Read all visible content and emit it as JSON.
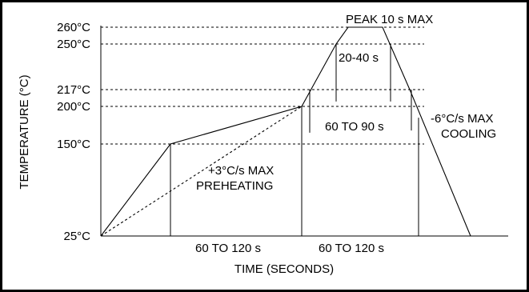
{
  "chart_data": {
    "type": "line",
    "title": "",
    "xlabel": "TIME (SECONDS)",
    "ylabel": "TEMPERATURE (°C)",
    "y_ticks": [
      {
        "value": 25,
        "label": "25°C"
      },
      {
        "value": 150,
        "label": "150°C"
      },
      {
        "value": 200,
        "label": "200°C"
      },
      {
        "value": 217,
        "label": "217°C"
      },
      {
        "value": 250,
        "label": "250°C"
      },
      {
        "value": 260,
        "label": "260°C"
      }
    ],
    "ylim": [
      25,
      260
    ],
    "series": [
      {
        "style": "solid",
        "x": [
          0,
          60,
          180,
          220,
          240,
          255,
          290,
          340
        ],
        "y": [
          25,
          150,
          200,
          250,
          260,
          260,
          217,
          25
        ]
      },
      {
        "style": "dashed",
        "x": [
          0,
          180
        ],
        "y": [
          25,
          200
        ]
      }
    ],
    "annotations": {
      "peak": "PEAK 10 s MAX",
      "time_above_250": "20-40 s",
      "time_above_217": "60 TO 90 s",
      "cooling_rate": "-6°C/s MAX",
      "cooling_label": "COOLING",
      "preheat_rate": "+3°C/s MAX",
      "preheat_label": "PREHEATING",
      "span_preheat": "60 TO 120 s",
      "span_reflow": "60 TO 120 s"
    },
    "grid": false,
    "legend": "none"
  }
}
